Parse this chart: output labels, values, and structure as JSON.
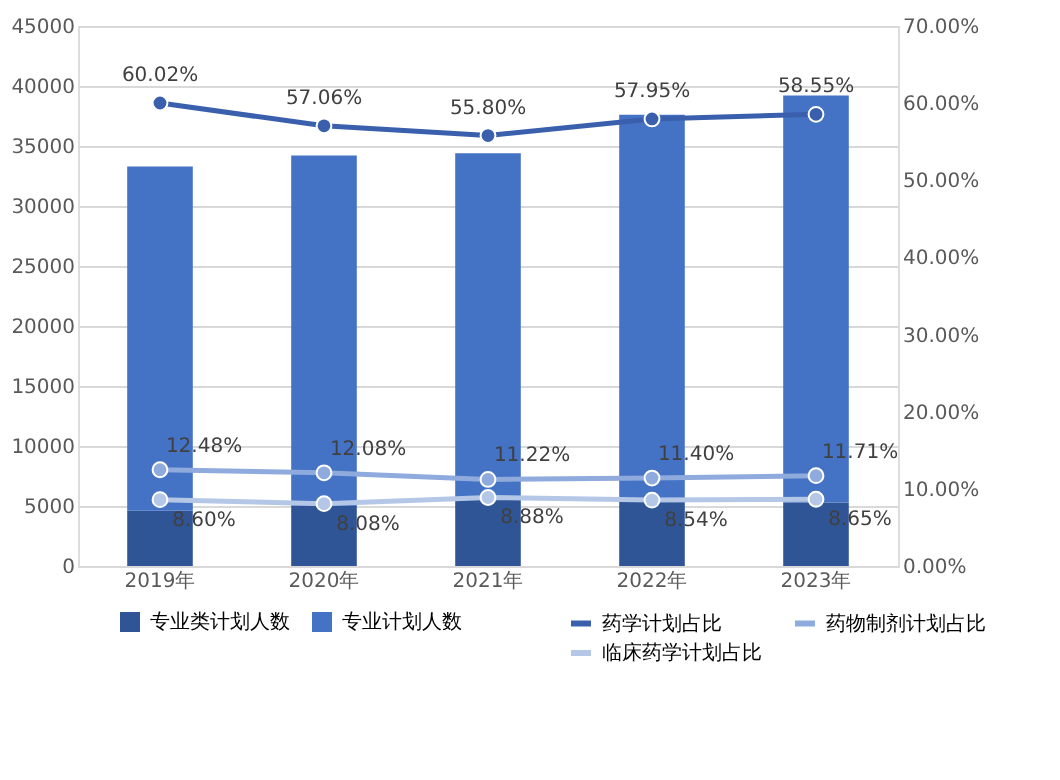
{
  "chart_data": {
    "type": "bar",
    "stacked": true,
    "categories": [
      "2019年",
      "2020年",
      "2021年",
      "2022年",
      "2023年"
    ],
    "series": [
      {
        "name": "专业类计划人数",
        "color": "#2f5597",
        "values": [
          4600,
          5000,
          5500,
          5400,
          5300
        ]
      },
      {
        "name": "专业计划人数",
        "color": "#4472c4",
        "values": [
          28700,
          29200,
          28900,
          32200,
          33900
        ]
      },
      {
        "name": "药学计划占比",
        "type": "line",
        "axis": "y2",
        "color": "#3a60ad",
        "values": [
          60.02,
          57.06,
          55.8,
          57.95,
          58.55
        ],
        "value_labels": [
          "60.02%",
          "57.06%",
          "55.80%",
          "57.95%",
          "58.55%"
        ]
      },
      {
        "name": "药物制剂计划占比",
        "type": "line",
        "axis": "y2",
        "color": "#8faadc",
        "values": [
          12.48,
          12.08,
          11.22,
          11.4,
          11.71
        ],
        "value_labels": [
          "12.48%",
          "12.08%",
          "11.22%",
          "11.40%",
          "11.71%"
        ]
      },
      {
        "name": "临床药学计划占比",
        "type": "line",
        "axis": "y2",
        "color": "#b4c7e7",
        "values": [
          8.6,
          8.08,
          8.88,
          8.54,
          8.65
        ],
        "value_labels": [
          "8.60%",
          "8.08%",
          "8.88%",
          "8.54%",
          "8.65%"
        ]
      }
    ],
    "ylim": [
      0,
      45000
    ],
    "yticks": [
      0,
      5000,
      10000,
      15000,
      20000,
      25000,
      30000,
      35000,
      40000,
      45000
    ],
    "y2lim": [
      0,
      70
    ],
    "y2ticks": [
      {
        "value": 0,
        "label": "0.00%"
      },
      {
        "value": 10,
        "label": "10.00%"
      },
      {
        "value": 20,
        "label": "20.00%"
      },
      {
        "value": 30,
        "label": "30.00%"
      },
      {
        "value": 40,
        "label": "40.00%"
      },
      {
        "value": 50,
        "label": "50.00%"
      },
      {
        "value": 60,
        "label": "60.00%"
      },
      {
        "value": 70,
        "label": "70.00%"
      }
    ],
    "grid": "y",
    "legend": "bottom",
    "marker": "circle",
    "line_style": "solid"
  }
}
